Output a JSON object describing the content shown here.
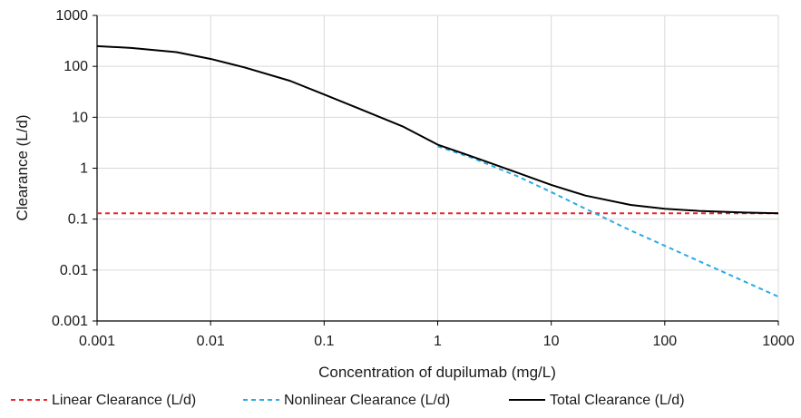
{
  "chart_data": {
    "type": "line",
    "xlabel": "Concentration of dupilumab (mg/L)",
    "ylabel": "Clearance (L/d)",
    "x_scale": "log",
    "y_scale": "log",
    "xlim": [
      0.001,
      1000
    ],
    "ylim": [
      0.001,
      1000
    ],
    "x_ticks": [
      0.001,
      0.01,
      0.1,
      1,
      10,
      100,
      1000
    ],
    "x_tick_labels": [
      "0.001",
      "0.01",
      "0.1",
      "1",
      "10",
      "100",
      "1000"
    ],
    "y_ticks": [
      0.001,
      0.01,
      0.1,
      1,
      10,
      100,
      1000
    ],
    "y_tick_labels": [
      "0.001",
      "0.01",
      "0.1",
      "1",
      "10",
      "100",
      "1000"
    ],
    "grid": true,
    "legend_position": "bottom",
    "series": [
      {
        "name": "Linear Clearance (L/d)",
        "color": "#e8262a",
        "dash": "dashed",
        "x": [
          0.001,
          1000
        ],
        "y": [
          0.13,
          0.13
        ]
      },
      {
        "name": "Nonlinear Clearance (L/d)",
        "color": "#29abe2",
        "dash": "dashed",
        "x": [
          1,
          2,
          5,
          10,
          20,
          50,
          100,
          200,
          500,
          1000
        ],
        "y": [
          2.7,
          1.6,
          0.7,
          0.34,
          0.16,
          0.06,
          0.03,
          0.015,
          0.006,
          0.003
        ]
      },
      {
        "name": "Total Clearance (L/d)",
        "color": "#000000",
        "dash": "solid",
        "x": [
          0.001,
          0.002,
          0.005,
          0.01,
          0.02,
          0.05,
          0.1,
          0.2,
          0.5,
          1,
          2,
          5,
          10,
          20,
          50,
          100,
          200,
          500,
          1000
        ],
        "y": [
          250,
          230,
          190,
          140,
          95,
          52,
          28,
          15,
          6.5,
          2.9,
          1.7,
          0.82,
          0.47,
          0.29,
          0.19,
          0.16,
          0.145,
          0.135,
          0.13
        ]
      }
    ]
  }
}
